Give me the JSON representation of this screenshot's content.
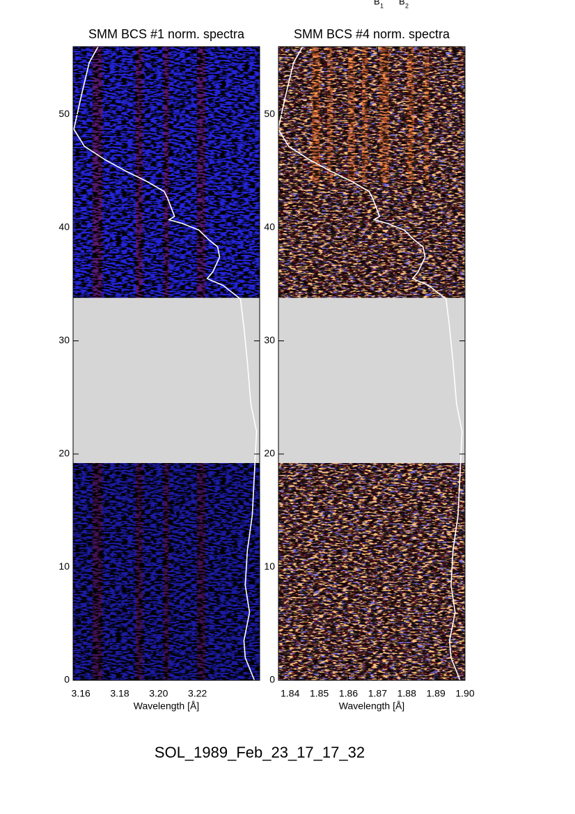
{
  "chart_data": [
    {
      "type": "spectrogram",
      "title": "SMM BCS #1 norm. spectra",
      "xlabel": "Wavelength [Å]",
      "xlim": [
        3.156,
        3.252
      ],
      "xticks": [
        3.16,
        3.18,
        {
          "value": 3.2,
          "label": "3.20"
        },
        3.22
      ],
      "ylim": [
        0,
        56
      ],
      "yticks": [
        0,
        10,
        20,
        30,
        40,
        50
      ],
      "gap": [
        19.2,
        33.8
      ],
      "gap_color": "#d6d6d6",
      "palette": "blue",
      "series": [
        {
          "color": "#ffffff",
          "x": [
            3.1689,
            3.1643,
            3.16,
            3.1564,
            3.1618,
            3.1725,
            3.1832,
            3.1939,
            3.2029,
            3.2046,
            3.2082,
            3.2054,
            3.2118,
            3.2207,
            3.2261,
            3.2304,
            3.2314,
            3.2279,
            3.225,
            3.2332,
            3.2421,
            3.2439,
            3.2457,
            3.2475,
            3.2504,
            3.2493,
            3.2482,
            3.2457,
            3.2446,
            3.2468,
            3.2439,
            3.2446,
            3.2493
          ],
          "values": [
            56.0,
            54.6,
            51.5,
            48.7,
            47.2,
            46.0,
            45.0,
            44.1,
            43.2,
            42.6,
            41.0,
            40.7,
            40.4,
            39.8,
            38.9,
            38.3,
            37.4,
            36.1,
            35.5,
            34.9,
            33.7,
            31.2,
            28.1,
            24.4,
            22.0,
            18.3,
            14.6,
            11.5,
            8.4,
            6.0,
            3.5,
            2.0,
            0.0
          ]
        }
      ]
    },
    {
      "type": "spectrogram",
      "title": "SMM BCS #4 norm. spectra",
      "xlabel": "Wavelength [Å]",
      "xlim": [
        1.836,
        1.9
      ],
      "xticks": [
        1.84,
        1.85,
        1.86,
        1.87,
        1.88,
        1.89,
        {
          "value": 1.9,
          "label": "1.90"
        }
      ],
      "ylim": [
        0,
        56
      ],
      "yticks": [
        0,
        10,
        20,
        30,
        40,
        50
      ],
      "gap": [
        19.2,
        33.8
      ],
      "gap_color": "#d6d6d6",
      "palette": "hot",
      "series": [
        {
          "color": "#ffffff",
          "x": [
            1.8443,
            1.8412,
            1.8383,
            1.8359,
            1.8395,
            1.8467,
            1.8539,
            1.8611,
            1.8671,
            1.8683,
            1.8707,
            1.8688,
            1.8731,
            1.8791,
            1.8827,
            1.8856,
            1.8863,
            1.8839,
            1.882,
            1.8875,
            1.8935,
            1.8947,
            1.8959,
            1.8971,
            1.899,
            1.8983,
            1.8976,
            1.8959,
            1.8952,
            1.8966,
            1.8947,
            1.8952,
            1.8983
          ],
          "values": [
            56.0,
            54.6,
            51.5,
            48.7,
            47.2,
            46.0,
            45.0,
            44.1,
            43.2,
            42.6,
            41.0,
            40.7,
            40.4,
            39.8,
            38.9,
            38.3,
            37.4,
            36.1,
            35.5,
            34.9,
            33.7,
            31.2,
            28.1,
            24.4,
            22.0,
            18.3,
            14.6,
            11.5,
            8.4,
            6.0,
            3.5,
            2.0,
            0.0
          ]
        }
      ]
    }
  ],
  "header_labels": [
    {
      "text": "B",
      "sub": "1"
    },
    {
      "text": "B",
      "sub": "2"
    }
  ],
  "footer": "SOL_1989_Feb_23_17_17_32"
}
